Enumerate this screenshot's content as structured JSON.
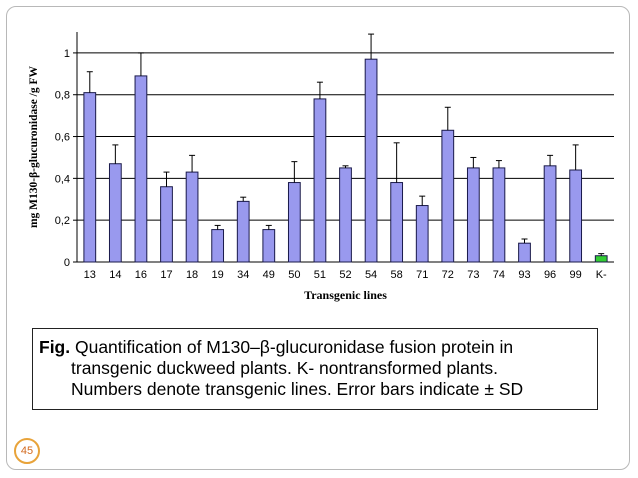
{
  "chart_data": {
    "type": "bar",
    "ylabel": "mg M130-β-glucuronidase /g FW",
    "xlabel": "Transgenic lines",
    "ylim": [
      0,
      1.1
    ],
    "yticks": [
      0,
      0.2,
      0.4,
      0.6,
      0.8,
      1
    ],
    "ytick_labels": [
      "0",
      "0,2",
      "0,4",
      "0,6",
      "0,8",
      "1"
    ],
    "grid": true,
    "categories": [
      "13",
      "14",
      "16",
      "17",
      "18",
      "19",
      "34",
      "49",
      "50",
      "51",
      "52",
      "54",
      "58",
      "71",
      "72",
      "73",
      "74",
      "93",
      "96",
      "99",
      "K-"
    ],
    "values": [
      0.81,
      0.47,
      0.89,
      0.36,
      0.43,
      0.155,
      0.29,
      0.155,
      0.38,
      0.78,
      0.45,
      0.97,
      0.38,
      0.27,
      0.63,
      0.45,
      0.45,
      0.09,
      0.46,
      0.44,
      0.03
    ],
    "errors": [
      0.1,
      0.09,
      0.11,
      0.07,
      0.08,
      0.02,
      0.02,
      0.02,
      0.1,
      0.08,
      0.01,
      0.12,
      0.19,
      0.045,
      0.11,
      0.05,
      0.035,
      0.02,
      0.05,
      0.12,
      0.01
    ],
    "bar_colors": [
      "#9999ee",
      "#9999ee",
      "#9999ee",
      "#9999ee",
      "#9999ee",
      "#9999ee",
      "#9999ee",
      "#9999ee",
      "#9999ee",
      "#9999ee",
      "#9999ee",
      "#9999ee",
      "#9999ee",
      "#9999ee",
      "#9999ee",
      "#9999ee",
      "#9999ee",
      "#9999ee",
      "#9999ee",
      "#9999ee",
      "#33cc33"
    ]
  },
  "caption": {
    "fig_label": "Fig.",
    "line1": " Quantification of M130–β-glucuronidase fusion protein in",
    "line2": "transgenic duckweed plants. K- nontransformed plants.",
    "line3": "Numbers denote transgenic lines. Error bars indicate ± SD"
  },
  "page_number": "45",
  "colors": {
    "badge_border": "#e8a33a",
    "badge_text": "#d2691e"
  }
}
